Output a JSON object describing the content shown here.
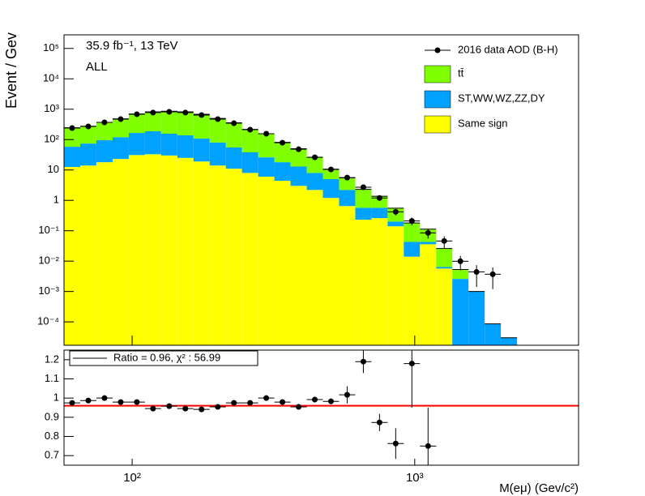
{
  "chart_data": [
    {
      "type": "histogram",
      "stacked": true,
      "log_x": true,
      "log_y": true,
      "ylabel": "Event / Gev",
      "annotations": [
        "35.9 fb⁻¹, 13 TeV",
        "ALL"
      ],
      "bins": [
        57.4,
        65.5,
        74.7,
        85.3,
        97.3,
        111,
        126.6,
        144.5,
        164.8,
        188.1,
        214.6,
        244.8,
        279.3,
        318.6,
        363.5,
        414.8,
        473.2,
        539.9,
        616,
        702.8,
        801.8,
        914.8,
        1043.7,
        1190.7,
        1358.5,
        1549.9,
        1768.3,
        2017.4,
        2301.7
      ],
      "series": [
        {
          "name": "Same sign",
          "color": "#ffff00",
          "values": [
            12.5,
            14,
            18,
            23,
            31,
            33,
            30,
            25,
            19,
            14,
            11,
            8,
            6,
            4.4,
            3,
            2.2,
            1.2,
            0.65,
            0.23,
            0.26,
            0.14,
            0.014,
            0.036,
            0.0057,
            0,
            0,
            0,
            0
          ]
        },
        {
          "name": "ST,WW,WZ,ZZ,DY",
          "color": "#00a2ff",
          "values": [
            45.5,
            60,
            77,
            97,
            134,
            155,
            126,
            113,
            89,
            66,
            44,
            30,
            20,
            13.6,
            10,
            5.8,
            3.8,
            1.55,
            0.34,
            0.31,
            0.06,
            0.029,
            0.007,
            0.0007,
            0.0026,
            0.001,
            8.6e-05,
            3e-05
          ]
        },
        {
          "name": "tt̄",
          "color": "#7fff00",
          "values": [
            188,
            201,
            274,
            362,
            533,
            630,
            701,
            680,
            574,
            415,
            301,
            179,
            130,
            63,
            37,
            18,
            5.6,
            3.3,
            1.73,
            0.8,
            0.35,
            0.137,
            0.07,
            0.0196,
            0.0027,
            0,
            0,
            0
          ]
        }
      ],
      "data": {
        "name": "2016 data AOD (B-H)",
        "color": "#000000",
        "values": [
          240,
          271,
          369,
          472,
          683,
          773,
          821,
          773,
          642,
          472,
          347,
          212,
          156,
          79,
          48,
          26,
          10.4,
          5.6,
          2.7,
          1.2,
          0.42,
          0.21,
          0.085,
          0.046,
          0.0099,
          0.0044,
          0.0037,
          null
        ],
        "errors": [
          8,
          9,
          10,
          12,
          14,
          15,
          15,
          14,
          12,
          10,
          8,
          6,
          5,
          3,
          2,
          1.5,
          0.8,
          0.5,
          0.3,
          0.2,
          0.1,
          0.06,
          0.03,
          0.02,
          0.005,
          0.003,
          0.0025,
          null
        ]
      },
      "xlim": [
        57.4,
        3800
      ],
      "ylim": [
        1.7e-05,
        280000
      ],
      "yticks": [
        {
          "value": 100000,
          "label": "10⁵"
        },
        {
          "value": 10000,
          "label": "10⁴"
        },
        {
          "value": 1000,
          "label": "10³"
        },
        {
          "value": 100,
          "label": "10²"
        },
        10,
        1,
        {
          "value": 0.1,
          "label": "10⁻¹"
        },
        {
          "value": 0.01,
          "label": "10⁻²"
        },
        {
          "value": 0.001,
          "label": "10⁻³"
        },
        {
          "value": 0.0001,
          "label": "10⁻⁴"
        }
      ],
      "legend": "top-right"
    },
    {
      "type": "ratio",
      "log_x": true,
      "xlabel": "M(eμ) (Gev/c²)",
      "legend": "Ratio = 0.96, χ² : 56.99",
      "fit_value": 0.96,
      "fit_color": "#ff0000",
      "values": [
        0.975,
        0.987,
        1.0,
        0.979,
        0.979,
        0.945,
        0.958,
        0.945,
        0.941,
        0.954,
        0.975,
        0.975,
        1.0,
        0.979,
        0.954,
        0.992,
        0.983,
        1.017,
        1.19,
        0.873,
        0.763,
        1.18,
        0.75,
        null,
        null,
        null,
        null,
        null
      ],
      "errors": [
        0.006,
        0.006,
        0.006,
        0.006,
        0.006,
        0.006,
        0.006,
        0.006,
        0.006,
        0.006,
        0.007,
        0.008,
        0.01,
        0.01,
        0.012,
        0.015,
        0.015,
        0.045,
        0.06,
        0.045,
        0.08,
        0.23,
        0.2,
        null,
        null,
        null,
        null,
        null
      ],
      "xlim": [
        57.4,
        3800
      ],
      "ylim": [
        0.65,
        1.25
      ],
      "xticks": [
        {
          "value": 100,
          "label": "10²"
        },
        {
          "value": 1000,
          "label": "10³"
        }
      ],
      "yticks": [
        0.7,
        0.8,
        0.9,
        1,
        1.1,
        1.2
      ]
    }
  ]
}
